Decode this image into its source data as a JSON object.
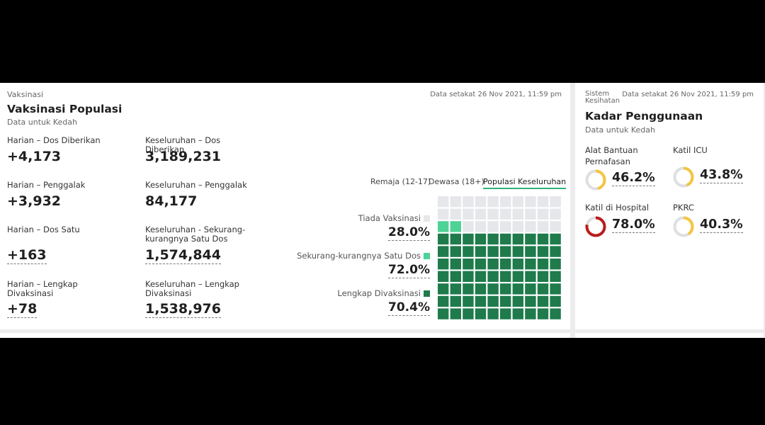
{
  "vaccination": {
    "category": "Vaksinasi",
    "title": "Vaksinasi Populasi",
    "subtitle": "Data untuk Kedah",
    "timestamp": "Data setakat 26 Nov 2021, 11:59 pm",
    "stats": [
      {
        "label": "Harian – Dos Diberikan",
        "value": "+4,173"
      },
      {
        "label": "Keseluruhan – Dos Diberikan",
        "value": "3,189,231"
      },
      {
        "label": "Harian – Penggalak",
        "value": "+3,932"
      },
      {
        "label": "Keseluruhan – Penggalak",
        "value": "84,177"
      },
      {
        "label": "Harian – Dos Satu",
        "value": "+163"
      },
      {
        "label": "Keseluruhan - Sekurang-kurangnya Satu Dos",
        "value": "1,574,844"
      },
      {
        "label": "Harian – Lengkap Divaksinasi",
        "value": "+78"
      },
      {
        "label": "Keseluruhan – Lengkap Divaksinasi",
        "value": "1,538,976"
      }
    ],
    "tabs": [
      "Remaja (12-17)",
      "Dewasa (18+)",
      "Populasi Keseluruhan"
    ],
    "active_tab": 2,
    "waffle": [
      {
        "name": "Tiada Vaksinasi",
        "value": 28.0,
        "value_label": "28.0%",
        "color": "#e6e7ea"
      },
      {
        "name": "Sekurang-kurangnya Satu Dos",
        "value": 72.0,
        "value_label": "72.0%",
        "color": "#4fd296"
      },
      {
        "name": "Lengkap Divaksinasi",
        "value": 70.4,
        "value_label": "70.4%",
        "color": "#1f7a4c"
      }
    ]
  },
  "health": {
    "category": "Sistem Kesihatan",
    "title": "Kadar Penggunaan",
    "subtitle": "Data untuk Kedah",
    "timestamp": "Data setakat 26 Nov 2021, 11:59 pm",
    "gauges": [
      {
        "label": "Alat Bantuan Pernafasan",
        "value": 46.2,
        "value_label": "46.2%",
        "color": "#f4c542"
      },
      {
        "label": "Katil ICU",
        "value": 43.8,
        "value_label": "43.8%",
        "color": "#f4c542"
      },
      {
        "label": "Katil di Hospital",
        "value": 78.0,
        "value_label": "78.0%",
        "color": "#b91c1c"
      },
      {
        "label": "PKRC",
        "value": 40.3,
        "value_label": "40.3%",
        "color": "#f4c542"
      }
    ]
  }
}
